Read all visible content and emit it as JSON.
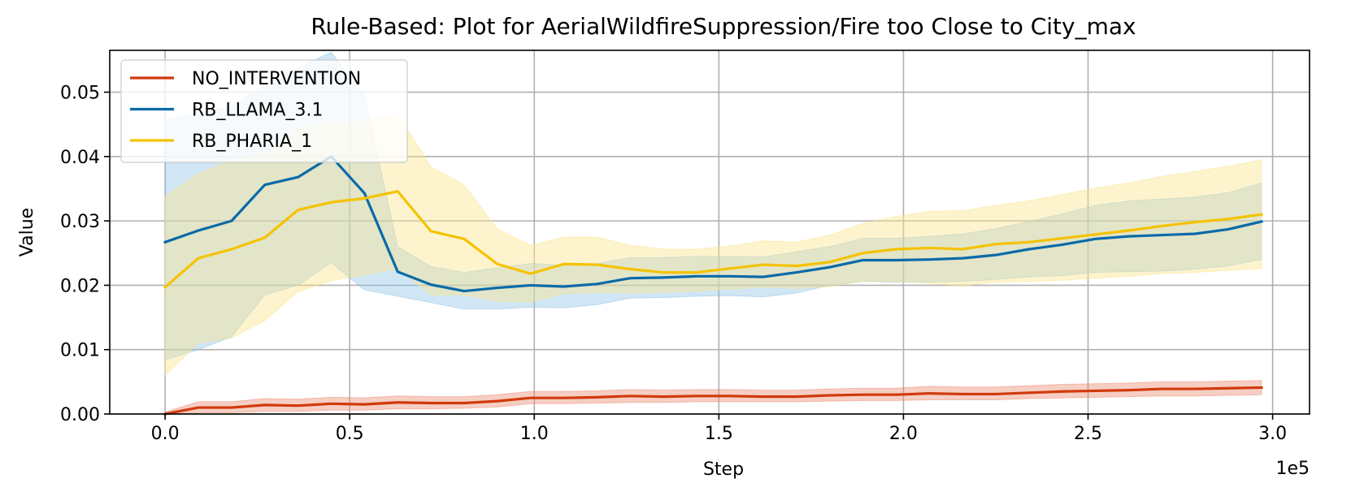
{
  "chart_data": {
    "type": "line",
    "title": "Rule-Based: Plot for AerialWildfireSuppression/Fire too Close to City_max",
    "xlabel": "Step",
    "ylabel": "Value",
    "x_offset_label": "1e5",
    "xlim": [
      -0.15,
      3.1
    ],
    "ylim": [
      0.0,
      0.0565
    ],
    "x_ticks": [
      0.0,
      0.5,
      1.0,
      1.5,
      2.0,
      2.5,
      3.0
    ],
    "x_tick_labels": [
      "0.0",
      "0.5",
      "1.0",
      "1.5",
      "2.0",
      "2.5",
      "3.0"
    ],
    "y_ticks": [
      0.0,
      0.01,
      0.02,
      0.03,
      0.04,
      0.05
    ],
    "y_tick_labels": [
      "0.00",
      "0.01",
      "0.02",
      "0.03",
      "0.04",
      "0.05"
    ],
    "grid": true,
    "legend_position": "top-left",
    "x": [
      0.0,
      0.09,
      0.18,
      0.27,
      0.36,
      0.45,
      0.54,
      0.63,
      0.72,
      0.81,
      0.9,
      0.99,
      1.08,
      1.17,
      1.26,
      1.35,
      1.44,
      1.53,
      1.62,
      1.71,
      1.8,
      1.89,
      1.98,
      2.07,
      2.16,
      2.25,
      2.34,
      2.43,
      2.52,
      2.61,
      2.7,
      2.79,
      2.88,
      2.97
    ],
    "series": [
      {
        "name": "NO_INTERVENTION",
        "color": "#d03a0c",
        "band_color": "#e98a6f",
        "values": [
          0.0,
          0.001,
          0.001,
          0.0014,
          0.0013,
          0.0016,
          0.0015,
          0.0018,
          0.0017,
          0.0017,
          0.002,
          0.0025,
          0.0025,
          0.0026,
          0.0028,
          0.0027,
          0.0028,
          0.0028,
          0.0027,
          0.0027,
          0.0029,
          0.003,
          0.003,
          0.0032,
          0.0031,
          0.0031,
          0.0033,
          0.0035,
          0.0036,
          0.0037,
          0.0039,
          0.0039,
          0.004,
          0.0041
        ],
        "lower": [
          0.0,
          0.0002,
          0.0002,
          0.0004,
          0.0004,
          0.0006,
          0.0006,
          0.0008,
          0.0008,
          0.0009,
          0.0011,
          0.0016,
          0.0016,
          0.0017,
          0.0018,
          0.0018,
          0.0019,
          0.0019,
          0.0019,
          0.0019,
          0.002,
          0.0021,
          0.0021,
          0.0022,
          0.0022,
          0.0022,
          0.0024,
          0.0025,
          0.0026,
          0.0027,
          0.0028,
          0.0028,
          0.0029,
          0.003
        ],
        "upper": [
          0.0003,
          0.0019,
          0.0019,
          0.0024,
          0.0023,
          0.0026,
          0.0025,
          0.0028,
          0.0027,
          0.0027,
          0.003,
          0.0035,
          0.0035,
          0.0036,
          0.0038,
          0.0037,
          0.0038,
          0.0038,
          0.0037,
          0.0037,
          0.0039,
          0.004,
          0.004,
          0.0043,
          0.0042,
          0.0042,
          0.0044,
          0.0046,
          0.0047,
          0.0048,
          0.005,
          0.005,
          0.0051,
          0.0052
        ]
      },
      {
        "name": "RB_LLAMA_3.1",
        "color": "#0a6aa8",
        "band_color": "#8fc3e8",
        "values": [
          0.0267,
          0.0285,
          0.03,
          0.0356,
          0.0368,
          0.04,
          0.0343,
          0.0221,
          0.0201,
          0.0191,
          0.0196,
          0.02,
          0.0198,
          0.0202,
          0.0211,
          0.0212,
          0.0214,
          0.0214,
          0.0213,
          0.022,
          0.0228,
          0.0239,
          0.0239,
          0.024,
          0.0242,
          0.0247,
          0.0256,
          0.0263,
          0.0272,
          0.0276,
          0.0278,
          0.028,
          0.0287,
          0.0299
        ],
        "lower": [
          0.0084,
          0.01,
          0.012,
          0.0185,
          0.02,
          0.0235,
          0.0193,
          0.0183,
          0.0173,
          0.0163,
          0.0163,
          0.0166,
          0.0165,
          0.017,
          0.018,
          0.0181,
          0.0183,
          0.0184,
          0.0182,
          0.0188,
          0.02,
          0.0206,
          0.0205,
          0.0205,
          0.0206,
          0.0209,
          0.0213,
          0.0215,
          0.022,
          0.0221,
          0.0222,
          0.0225,
          0.023,
          0.024
        ],
        "upper": [
          0.0455,
          0.0468,
          0.0478,
          0.051,
          0.0538,
          0.0562,
          0.0495,
          0.026,
          0.0229,
          0.022,
          0.0227,
          0.0234,
          0.0231,
          0.0234,
          0.0243,
          0.0243,
          0.0245,
          0.0245,
          0.0244,
          0.0252,
          0.026,
          0.0273,
          0.0273,
          0.0276,
          0.028,
          0.0288,
          0.0299,
          0.0311,
          0.0324,
          0.0331,
          0.0334,
          0.0337,
          0.0344,
          0.0359
        ]
      },
      {
        "name": "RB_PHARIA_1",
        "color": "#f5c200",
        "band_color": "#fbe48a",
        "values": [
          0.0197,
          0.0242,
          0.0256,
          0.0274,
          0.0317,
          0.0329,
          0.0335,
          0.0346,
          0.0284,
          0.0272,
          0.0233,
          0.0218,
          0.0233,
          0.0232,
          0.0225,
          0.022,
          0.022,
          0.0226,
          0.0232,
          0.023,
          0.0236,
          0.025,
          0.0256,
          0.0258,
          0.0256,
          0.0264,
          0.0267,
          0.0273,
          0.0279,
          0.0285,
          0.0292,
          0.0298,
          0.0303,
          0.031
        ],
        "lower": [
          0.006,
          0.011,
          0.0118,
          0.0145,
          0.019,
          0.0207,
          0.0216,
          0.0226,
          0.0185,
          0.0185,
          0.0175,
          0.0174,
          0.0187,
          0.0189,
          0.0188,
          0.0189,
          0.0191,
          0.0194,
          0.0197,
          0.0195,
          0.0198,
          0.0206,
          0.0206,
          0.0203,
          0.0199,
          0.0205,
          0.0206,
          0.0208,
          0.0211,
          0.0214,
          0.0218,
          0.022,
          0.0223,
          0.0226
        ],
        "upper": [
          0.0338,
          0.0374,
          0.0394,
          0.0404,
          0.0444,
          0.0452,
          0.0455,
          0.0466,
          0.0384,
          0.0356,
          0.0287,
          0.0262,
          0.0275,
          0.0275,
          0.0262,
          0.0256,
          0.0256,
          0.0261,
          0.0269,
          0.0267,
          0.0278,
          0.0296,
          0.0307,
          0.0315,
          0.0316,
          0.0324,
          0.0331,
          0.0341,
          0.0351,
          0.0359,
          0.0369,
          0.0377,
          0.0385,
          0.0395
        ]
      }
    ]
  }
}
